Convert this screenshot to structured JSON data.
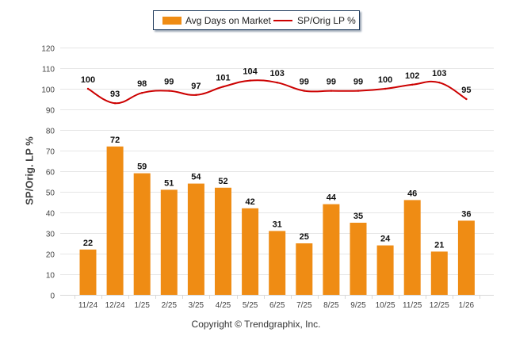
{
  "chart_data": {
    "type": "bar+line",
    "categories": [
      "11/24",
      "12/24",
      "1/25",
      "2/25",
      "3/25",
      "4/25",
      "5/25",
      "6/25",
      "7/25",
      "8/25",
      "9/25",
      "10/25",
      "11/25",
      "12/25",
      "1/26"
    ],
    "series": [
      {
        "name": "Avg Days on Market",
        "type": "bar",
        "color": "#ef8c14",
        "values": [
          22,
          72,
          59,
          51,
          54,
          52,
          42,
          31,
          25,
          44,
          35,
          24,
          46,
          21,
          36
        ]
      },
      {
        "name": "SP/Orig LP %",
        "type": "line",
        "color": "#cc0000",
        "values": [
          100,
          93,
          98,
          99,
          97,
          101,
          104,
          103,
          99,
          99,
          99,
          100,
          102,
          103,
          95
        ]
      }
    ],
    "ylabel": "SP/Orig. LP %",
    "ylim": [
      0,
      120
    ],
    "yticks": [
      0,
      10,
      20,
      30,
      40,
      50,
      60,
      70,
      80,
      90,
      100,
      110,
      120
    ],
    "grid": true,
    "legend_position": "top-center"
  },
  "legend": {
    "bar_label": "Avg Days on Market",
    "line_label": "SP/Orig LP %"
  },
  "footer": {
    "copyright": "Copyright © Trendgraphix, Inc."
  }
}
